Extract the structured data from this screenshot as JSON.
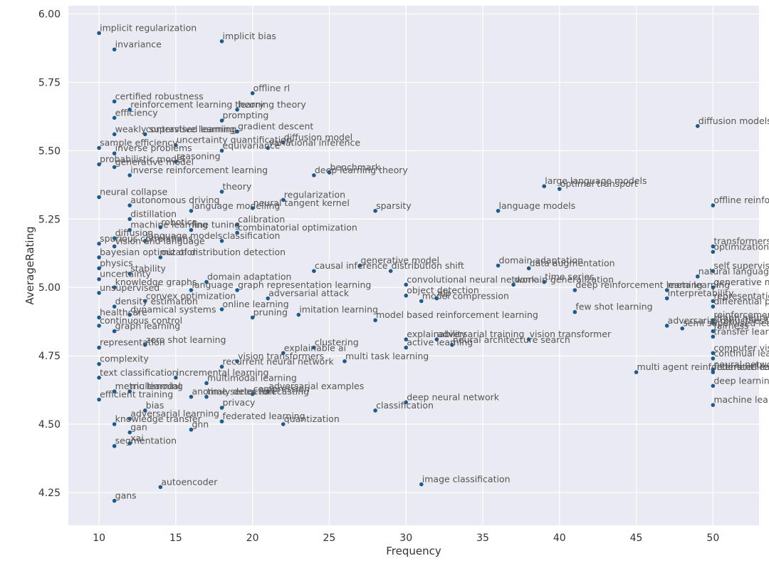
{
  "chart_data": {
    "type": "scatter",
    "xlabel": "Frequency",
    "ylabel": "AverageRating",
    "xlim": [
      8,
      53
    ],
    "ylim": [
      4.13,
      6.03
    ],
    "xticks": [
      10,
      15,
      20,
      25,
      30,
      35,
      40,
      45,
      50
    ],
    "yticks": [
      "4.25",
      "4.50",
      "4.75",
      "5.00",
      "5.25",
      "5.50",
      "5.75",
      "6.00"
    ],
    "grid": true,
    "points": [
      {
        "label": "implicit regularization",
        "x": 10,
        "y": 5.93
      },
      {
        "label": "implicit bias",
        "x": 18,
        "y": 5.9
      },
      {
        "label": "invariance",
        "x": 11,
        "y": 5.87
      },
      {
        "label": "offline rl",
        "x": 20,
        "y": 5.71
      },
      {
        "label": "certified robustness",
        "x": 11,
        "y": 5.68
      },
      {
        "label": "reinforcement learning theory",
        "x": 12,
        "y": 5.65
      },
      {
        "label": "learning theory",
        "x": 19,
        "y": 5.65
      },
      {
        "label": "efficiency",
        "x": 11,
        "y": 5.62
      },
      {
        "label": "prompting",
        "x": 18,
        "y": 5.61
      },
      {
        "label": "gradient descent",
        "x": 19,
        "y": 5.57
      },
      {
        "label": "weakly supervised learning",
        "x": 11,
        "y": 5.56
      },
      {
        "label": "contrastive learning",
        "x": 13,
        "y": 5.56
      },
      {
        "label": "diffusion model",
        "x": 22,
        "y": 5.53
      },
      {
        "label": "uncertainty quantification",
        "x": 15,
        "y": 5.52
      },
      {
        "label": "variational inference",
        "x": 21,
        "y": 5.51
      },
      {
        "label": "sample efficiency",
        "x": 10,
        "y": 5.51
      },
      {
        "label": "equivariance",
        "x": 18,
        "y": 5.5
      },
      {
        "label": "inverse problems",
        "x": 11,
        "y": 5.49
      },
      {
        "label": "reasoning",
        "x": 15,
        "y": 5.46
      },
      {
        "label": "probabilistic model",
        "x": 10,
        "y": 5.45
      },
      {
        "label": "generative model",
        "x": 11,
        "y": 5.44
      },
      {
        "label": "benchmark",
        "x": 25,
        "y": 5.42
      },
      {
        "label": "deep learning theory",
        "x": 24,
        "y": 5.41
      },
      {
        "label": "inverse reinforcement learning",
        "x": 12,
        "y": 5.41
      },
      {
        "label": "diffusion models",
        "x": 49,
        "y": 5.59
      },
      {
        "label": "large language models",
        "x": 39,
        "y": 5.37
      },
      {
        "label": "optimal transport",
        "x": 40,
        "y": 5.36
      },
      {
        "label": "theory",
        "x": 18,
        "y": 5.35
      },
      {
        "label": "neural collapse",
        "x": 10,
        "y": 5.33
      },
      {
        "label": "regularization",
        "x": 22,
        "y": 5.32
      },
      {
        "label": "autonomous driving",
        "x": 12,
        "y": 5.3
      },
      {
        "label": "neural tangent kernel",
        "x": 20,
        "y": 5.29
      },
      {
        "label": "offline reinforcement learning",
        "x": 50,
        "y": 5.3
      },
      {
        "label": "language modelling",
        "x": 16,
        "y": 5.28
      },
      {
        "label": "sparsity",
        "x": 28,
        "y": 5.28
      },
      {
        "label": "language models",
        "x": 36,
        "y": 5.28
      },
      {
        "label": "distillation",
        "x": 12,
        "y": 5.25
      },
      {
        "label": "calibration",
        "x": 19,
        "y": 5.23
      },
      {
        "label": "robotics",
        "x": 14,
        "y": 5.22
      },
      {
        "label": "machine learning",
        "x": 12,
        "y": 5.21
      },
      {
        "label": "fine tuning",
        "x": 16,
        "y": 5.21
      },
      {
        "label": "combinatorial optimization",
        "x": 19,
        "y": 5.2
      },
      {
        "label": "diffusion",
        "x": 11,
        "y": 5.18
      },
      {
        "label": "language models",
        "x": 13,
        "y": 5.17
      },
      {
        "label": "classification",
        "x": 18,
        "y": 5.17
      },
      {
        "label": "spurious correlations",
        "x": 10,
        "y": 5.16
      },
      {
        "label": "vision and language",
        "x": 11,
        "y": 5.15
      },
      {
        "label": "transformers",
        "x": 50,
        "y": 5.15
      },
      {
        "label": "optimization",
        "x": 50,
        "y": 5.13
      },
      {
        "label": "bayesian optimization",
        "x": 10,
        "y": 5.11
      },
      {
        "label": "out of distribution detection",
        "x": 14,
        "y": 5.11
      },
      {
        "label": "generative model",
        "x": 27,
        "y": 5.08
      },
      {
        "label": "domain adaptation",
        "x": 36,
        "y": 5.08
      },
      {
        "label": "data augmentation",
        "x": 38,
        "y": 5.07
      },
      {
        "label": "causal inference",
        "x": 24,
        "y": 5.06
      },
      {
        "label": "distribution shift",
        "x": 29,
        "y": 5.06
      },
      {
        "label": "physics",
        "x": 10,
        "y": 5.07
      },
      {
        "label": "self supervised learning",
        "x": 50,
        "y": 5.06
      },
      {
        "label": "natural language processing",
        "x": 49,
        "y": 5.04
      },
      {
        "label": "stability",
        "x": 12,
        "y": 5.05
      },
      {
        "label": "uncertainty",
        "x": 10,
        "y": 5.03
      },
      {
        "label": "domain adaptation",
        "x": 17,
        "y": 5.02
      },
      {
        "label": "time series",
        "x": 39,
        "y": 5.02
      },
      {
        "label": "convolutional neural network",
        "x": 30,
        "y": 5.01
      },
      {
        "label": "domain generalization",
        "x": 37,
        "y": 5.01
      },
      {
        "label": "generative models",
        "x": 50,
        "y": 5.0
      },
      {
        "label": "deep reinforcement learning",
        "x": 41,
        "y": 4.99
      },
      {
        "label": "meta learning",
        "x": 47,
        "y": 4.99
      },
      {
        "label": "knowledge graphs",
        "x": 11,
        "y": 5.0
      },
      {
        "label": "language",
        "x": 16,
        "y": 4.99
      },
      {
        "label": "graph representation learning",
        "x": 19,
        "y": 4.99
      },
      {
        "label": "unsupervised",
        "x": 10,
        "y": 4.98
      },
      {
        "label": "object detection",
        "x": 30,
        "y": 4.97
      },
      {
        "label": "interpretability",
        "x": 47,
        "y": 4.96
      },
      {
        "label": "representation learning",
        "x": 50,
        "y": 4.95
      },
      {
        "label": "differential privacy",
        "x": 50,
        "y": 4.93
      },
      {
        "label": "adversarial attack",
        "x": 21,
        "y": 4.96
      },
      {
        "label": "model compression",
        "x": 31,
        "y": 4.95
      },
      {
        "label": "nlp",
        "x": 32,
        "y": 4.96
      },
      {
        "label": "convex optimization",
        "x": 13,
        "y": 4.95
      },
      {
        "label": "density estimation",
        "x": 11,
        "y": 4.93
      },
      {
        "label": "online learning",
        "x": 18,
        "y": 4.92
      },
      {
        "label": "few shot learning",
        "x": 41,
        "y": 4.91
      },
      {
        "label": "imitation learning",
        "x": 23,
        "y": 4.9
      },
      {
        "label": "dynamical systems",
        "x": 12,
        "y": 4.9
      },
      {
        "label": "healthcare",
        "x": 10,
        "y": 4.89
      },
      {
        "label": "pruning",
        "x": 20,
        "y": 4.89
      },
      {
        "label": "model based reinforcement learning",
        "x": 28,
        "y": 4.88
      },
      {
        "label": "reinforcement learning",
        "x": 50,
        "y": 4.88
      },
      {
        "label": "graph neural network",
        "x": 50,
        "y": 4.87
      },
      {
        "label": "continuous control",
        "x": 10,
        "y": 4.86
      },
      {
        "label": "adversarial robustness",
        "x": 47,
        "y": 4.86
      },
      {
        "label": "semi supervised learning",
        "x": 48,
        "y": 4.85
      },
      {
        "label": "fairness",
        "x": 50,
        "y": 4.84
      },
      {
        "label": "graph learning",
        "x": 11,
        "y": 4.84
      },
      {
        "label": "transfer learning",
        "x": 50,
        "y": 4.82
      },
      {
        "label": "explainability",
        "x": 30,
        "y": 4.81
      },
      {
        "label": "adversarial training",
        "x": 32,
        "y": 4.81
      },
      {
        "label": "vision transformer",
        "x": 38,
        "y": 4.81
      },
      {
        "label": "zero shot learning",
        "x": 13,
        "y": 4.79
      },
      {
        "label": "representation",
        "x": 10,
        "y": 4.78
      },
      {
        "label": "neural architecture search",
        "x": 33,
        "y": 4.79
      },
      {
        "label": "active learning",
        "x": 30,
        "y": 4.78
      },
      {
        "label": "clustering",
        "x": 24,
        "y": 4.78
      },
      {
        "label": "explainable ai",
        "x": 22,
        "y": 4.76
      },
      {
        "label": "computer vision",
        "x": 50,
        "y": 4.76
      },
      {
        "label": "continual learning",
        "x": 50,
        "y": 4.74
      },
      {
        "label": "multi task learning",
        "x": 26,
        "y": 4.73
      },
      {
        "label": "vision transformers",
        "x": 19,
        "y": 4.73
      },
      {
        "label": "complexity",
        "x": 10,
        "y": 4.72
      },
      {
        "label": "recurrent neural network",
        "x": 18,
        "y": 4.71
      },
      {
        "label": "neural network",
        "x": 50,
        "y": 4.7
      },
      {
        "label": "multi agent reinforcement learning",
        "x": 45,
        "y": 4.69
      },
      {
        "label": "federated learning",
        "x": 50,
        "y": 4.69
      },
      {
        "label": "text classification",
        "x": 10,
        "y": 4.67
      },
      {
        "label": "incremental learning",
        "x": 15,
        "y": 4.67
      },
      {
        "label": "multimodal learning",
        "x": 17,
        "y": 4.65
      },
      {
        "label": "deep learning",
        "x": 50,
        "y": 4.64
      },
      {
        "label": "metric learning",
        "x": 11,
        "y": 4.62
      },
      {
        "label": "multimodal",
        "x": 12,
        "y": 4.62
      },
      {
        "label": "adversarial examples",
        "x": 21,
        "y": 4.62
      },
      {
        "label": "compression",
        "x": 20,
        "y": 4.61
      },
      {
        "label": "anomaly detection",
        "x": 16,
        "y": 4.6
      },
      {
        "label": "time series forecasting",
        "x": 17,
        "y": 4.6
      },
      {
        "label": "efficient training",
        "x": 10,
        "y": 4.59
      },
      {
        "label": "deep neural network",
        "x": 30,
        "y": 4.58
      },
      {
        "label": "machine learning",
        "x": 50,
        "y": 4.57
      },
      {
        "label": "privacy",
        "x": 18,
        "y": 4.56
      },
      {
        "label": "bias",
        "x": 13,
        "y": 4.55
      },
      {
        "label": "classification",
        "x": 28,
        "y": 4.55
      },
      {
        "label": "adversarial learning",
        "x": 12,
        "y": 4.52
      },
      {
        "label": "federated learning",
        "x": 18,
        "y": 4.51
      },
      {
        "label": "quantization",
        "x": 22,
        "y": 4.5
      },
      {
        "label": "knowledge transfer",
        "x": 11,
        "y": 4.5
      },
      {
        "label": "gan",
        "x": 12,
        "y": 4.47
      },
      {
        "label": "gnn",
        "x": 16,
        "y": 4.48
      },
      {
        "label": "xai",
        "x": 12,
        "y": 4.43
      },
      {
        "label": "segmentation",
        "x": 11,
        "y": 4.42
      },
      {
        "label": "image classification",
        "x": 31,
        "y": 4.28
      },
      {
        "label": "autoencoder",
        "x": 14,
        "y": 4.27
      },
      {
        "label": "gans",
        "x": 11,
        "y": 4.22
      }
    ]
  }
}
